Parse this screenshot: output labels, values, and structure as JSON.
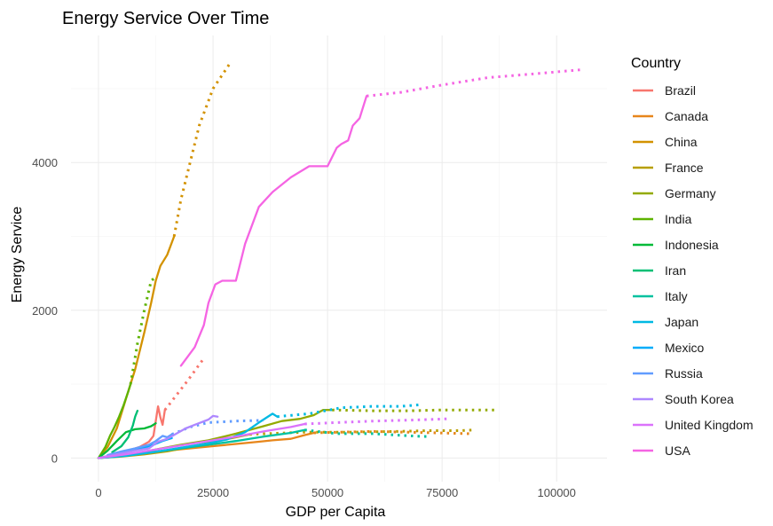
{
  "chart_data": {
    "type": "line",
    "title": "Energy Service Over Time",
    "xlabel": "GDP per Capita",
    "ylabel": "Energy Service",
    "xlim": [
      -6000,
      111000
    ],
    "ylim": [
      -320,
      5720
    ],
    "x_ticks": [
      0,
      25000,
      50000,
      75000,
      100000
    ],
    "x_tick_labels": [
      "0",
      "25000",
      "50000",
      "75000",
      "100000"
    ],
    "y_ticks": [
      0,
      2000,
      4000
    ],
    "y_tick_labels": [
      "0",
      "2000",
      "4000"
    ],
    "grid": true,
    "legend": {
      "title": "Country",
      "position": "right"
    },
    "line_styles": {
      "historical": "solid",
      "projection": "dotted"
    },
    "series": [
      {
        "name": "Brazil",
        "color": "#F8766D",
        "historical": [
          [
            0,
            0
          ],
          [
            3000,
            40
          ],
          [
            6000,
            90
          ],
          [
            9000,
            150
          ],
          [
            11000,
            220
          ],
          [
            12000,
            300
          ],
          [
            12500,
            500
          ],
          [
            13000,
            700
          ],
          [
            13500,
            550
          ],
          [
            14000,
            450
          ],
          [
            14500,
            650
          ]
        ],
        "projection": [
          [
            14500,
            650
          ],
          [
            17000,
            850
          ],
          [
            19500,
            1050
          ],
          [
            23000,
            1350
          ]
        ]
      },
      {
        "name": "Canada",
        "color": "#E7861B",
        "historical": [
          [
            0,
            0
          ],
          [
            5000,
            40
          ],
          [
            10000,
            70
          ],
          [
            15000,
            100
          ],
          [
            20000,
            130
          ],
          [
            25000,
            160
          ],
          [
            30000,
            190
          ],
          [
            35000,
            220
          ],
          [
            38000,
            240
          ],
          [
            42000,
            260
          ],
          [
            45000,
            310
          ],
          [
            47000,
            340
          ]
        ],
        "projection": [
          [
            47000,
            340
          ],
          [
            53000,
            350
          ],
          [
            60000,
            360
          ],
          [
            67000,
            350
          ],
          [
            74000,
            340
          ],
          [
            81000,
            330
          ]
        ]
      },
      {
        "name": "China",
        "color": "#D39200",
        "historical": [
          [
            0,
            0
          ],
          [
            2000,
            150
          ],
          [
            4000,
            400
          ],
          [
            6000,
            800
          ],
          [
            8000,
            1200
          ],
          [
            10000,
            1700
          ],
          [
            11500,
            2100
          ],
          [
            12500,
            2400
          ],
          [
            13500,
            2600
          ],
          [
            15000,
            2750
          ],
          [
            16500,
            3000
          ]
        ],
        "projection": [
          [
            16500,
            3000
          ],
          [
            18000,
            3500
          ],
          [
            20000,
            4000
          ],
          [
            22000,
            4500
          ],
          [
            25000,
            5000
          ],
          [
            29000,
            5370
          ]
        ]
      },
      {
        "name": "France",
        "color": "#B79F00",
        "historical": [
          [
            0,
            0
          ],
          [
            5000,
            20
          ],
          [
            10000,
            50
          ],
          [
            15000,
            90
          ],
          [
            20000,
            150
          ],
          [
            25000,
            220
          ],
          [
            30000,
            280
          ],
          [
            33000,
            320
          ]
        ],
        "projection": [
          [
            33000,
            320
          ],
          [
            45000,
            350
          ],
          [
            55000,
            350
          ],
          [
            65000,
            360
          ],
          [
            72000,
            370
          ],
          [
            79000,
            370
          ],
          [
            82000,
            380
          ]
        ]
      },
      {
        "name": "Germany",
        "color": "#93AA00",
        "historical": [
          [
            0,
            0
          ],
          [
            6000,
            40
          ],
          [
            12000,
            110
          ],
          [
            18000,
            180
          ],
          [
            24000,
            240
          ],
          [
            30000,
            330
          ],
          [
            36000,
            430
          ],
          [
            40000,
            500
          ],
          [
            44000,
            530
          ],
          [
            47000,
            580
          ],
          [
            49000,
            650
          ],
          [
            51000,
            650
          ]
        ],
        "projection": [
          [
            51000,
            650
          ],
          [
            60000,
            640
          ],
          [
            68000,
            640
          ],
          [
            75000,
            650
          ],
          [
            82000,
            650
          ],
          [
            87000,
            650
          ]
        ]
      },
      {
        "name": "India",
        "color": "#5EB300",
        "historical": [
          [
            0,
            0
          ],
          [
            1500,
            150
          ],
          [
            2500,
            300
          ],
          [
            3500,
            420
          ],
          [
            4500,
            560
          ],
          [
            5500,
            720
          ],
          [
            6500,
            900
          ],
          [
            7000,
            1000
          ]
        ],
        "projection": [
          [
            7000,
            1000
          ],
          [
            8500,
            1550
          ],
          [
            10000,
            2000
          ],
          [
            11500,
            2400
          ],
          [
            12500,
            2450
          ]
        ]
      },
      {
        "name": "Indonesia",
        "color": "#00BA38",
        "historical": [
          [
            0,
            0
          ],
          [
            2000,
            100
          ],
          [
            4000,
            230
          ],
          [
            6000,
            350
          ],
          [
            8000,
            390
          ],
          [
            10000,
            400
          ],
          [
            11500,
            430
          ],
          [
            12500,
            470
          ]
        ],
        "projection": []
      },
      {
        "name": "Iran",
        "color": "#00BF74",
        "historical": [
          [
            3000,
            80
          ],
          [
            5000,
            160
          ],
          [
            6500,
            280
          ],
          [
            7500,
            440
          ],
          [
            8000,
            560
          ],
          [
            8500,
            640
          ]
        ],
        "projection": []
      },
      {
        "name": "Italy",
        "color": "#00C19F",
        "historical": [
          [
            0,
            0
          ],
          [
            6000,
            30
          ],
          [
            12000,
            80
          ],
          [
            18000,
            130
          ],
          [
            24000,
            180
          ],
          [
            30000,
            230
          ],
          [
            36000,
            290
          ],
          [
            42000,
            340
          ],
          [
            45000,
            380
          ]
        ],
        "projection": [
          [
            45000,
            380
          ],
          [
            52000,
            330
          ],
          [
            60000,
            330
          ],
          [
            68000,
            300
          ],
          [
            72000,
            290
          ]
        ]
      },
      {
        "name": "Japan",
        "color": "#00B9E3",
        "historical": [
          [
            0,
            0
          ],
          [
            6000,
            30
          ],
          [
            12000,
            80
          ],
          [
            18000,
            140
          ],
          [
            24000,
            200
          ],
          [
            28000,
            250
          ],
          [
            32000,
            350
          ],
          [
            35000,
            480
          ],
          [
            38000,
            600
          ],
          [
            39000,
            560
          ]
        ],
        "projection": [
          [
            39000,
            560
          ],
          [
            46000,
            600
          ],
          [
            53000,
            680
          ],
          [
            60000,
            700
          ],
          [
            66000,
            700
          ],
          [
            70000,
            720
          ]
        ]
      },
      {
        "name": "Mexico",
        "color": "#00ADFA",
        "historical": [
          [
            1000,
            10
          ],
          [
            4000,
            50
          ],
          [
            7000,
            100
          ],
          [
            10000,
            140
          ],
          [
            12000,
            180
          ],
          [
            14000,
            230
          ],
          [
            16000,
            270
          ]
        ],
        "projection": []
      },
      {
        "name": "Russia",
        "color": "#619CFF",
        "historical": [
          [
            2000,
            40
          ],
          [
            5000,
            90
          ],
          [
            8000,
            130
          ],
          [
            11000,
            180
          ],
          [
            12500,
            230
          ],
          [
            14000,
            300
          ],
          [
            15000,
            280
          ],
          [
            16000,
            320
          ]
        ],
        "projection": [
          [
            16000,
            320
          ],
          [
            20000,
            420
          ],
          [
            24000,
            480
          ],
          [
            30000,
            500
          ],
          [
            36000,
            510
          ]
        ]
      },
      {
        "name": "South Korea",
        "color": "#AE87FF",
        "historical": [
          [
            0,
            0
          ],
          [
            4000,
            50
          ],
          [
            8000,
            100
          ],
          [
            11000,
            130
          ],
          [
            13000,
            220
          ],
          [
            15000,
            260
          ],
          [
            17000,
            330
          ],
          [
            19000,
            400
          ],
          [
            21000,
            450
          ],
          [
            24000,
            520
          ],
          [
            25000,
            570
          ],
          [
            26000,
            560
          ]
        ],
        "projection": []
      },
      {
        "name": "United Kingdom",
        "color": "#DB72FB",
        "historical": [
          [
            0,
            0
          ],
          [
            6000,
            50
          ],
          [
            12000,
            110
          ],
          [
            18000,
            170
          ],
          [
            24000,
            230
          ],
          [
            30000,
            290
          ],
          [
            36000,
            360
          ],
          [
            42000,
            420
          ],
          [
            45000,
            460
          ]
        ],
        "projection": [
          [
            45000,
            460
          ],
          [
            52000,
            480
          ],
          [
            60000,
            500
          ],
          [
            66000,
            510
          ],
          [
            72000,
            520
          ],
          [
            76000,
            530
          ]
        ]
      },
      {
        "name": "USA",
        "color": "#F564E3",
        "historical": [
          [
            18000,
            1250
          ],
          [
            21000,
            1500
          ],
          [
            23000,
            1800
          ],
          [
            24000,
            2100
          ],
          [
            25500,
            2350
          ],
          [
            27000,
            2400
          ],
          [
            30000,
            2400
          ],
          [
            32000,
            2900
          ],
          [
            35000,
            3400
          ],
          [
            38000,
            3600
          ],
          [
            42000,
            3800
          ],
          [
            46000,
            3950
          ],
          [
            50000,
            3950
          ],
          [
            52000,
            4200
          ],
          [
            53000,
            4250
          ],
          [
            54500,
            4300
          ],
          [
            55500,
            4500
          ],
          [
            57000,
            4600
          ],
          [
            58500,
            4900
          ]
        ],
        "projection": [
          [
            58500,
            4900
          ],
          [
            66000,
            4950
          ],
          [
            75000,
            5050
          ],
          [
            85000,
            5150
          ],
          [
            95000,
            5200
          ],
          [
            106000,
            5260
          ]
        ]
      }
    ]
  }
}
